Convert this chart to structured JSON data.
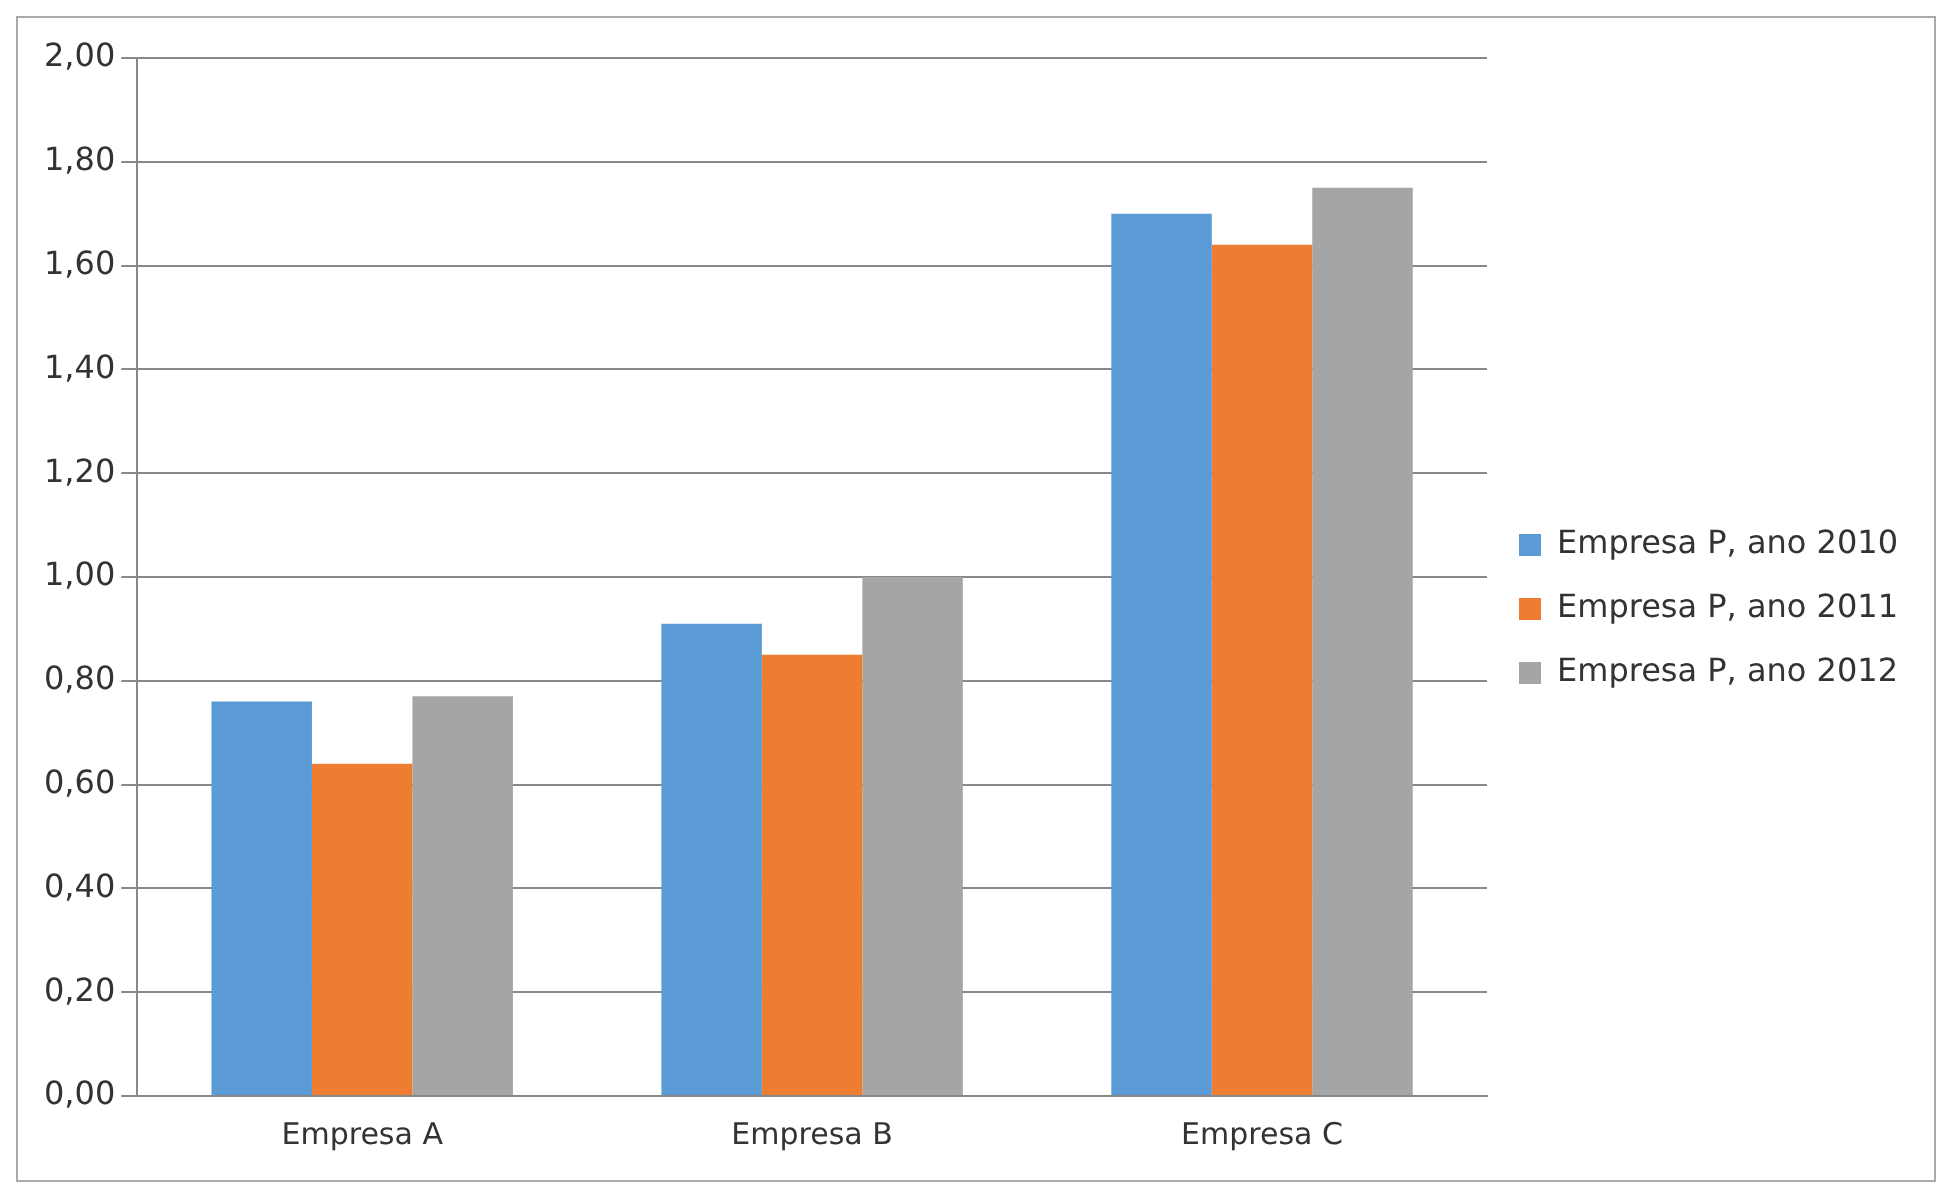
{
  "chart_data": {
    "type": "bar",
    "categories": [
      "Empresa A",
      "Empresa B",
      "Empresa C"
    ],
    "series": [
      {
        "name": "Empresa P, ano 2010",
        "color": "#5b9bd5",
        "values": [
          0.76,
          0.91,
          1.7
        ]
      },
      {
        "name": "Empresa P, ano 2011",
        "color": "#ed7d31",
        "values": [
          0.64,
          0.85,
          1.64
        ]
      },
      {
        "name": "Empresa P, ano 2012",
        "color": "#a5a5a5",
        "values": [
          0.77,
          1.0,
          1.75
        ]
      }
    ],
    "ylim": [
      0,
      2
    ],
    "yticks": [
      {
        "value": 0,
        "label": "0,00"
      },
      {
        "value": 0.2,
        "label": "0,20"
      },
      {
        "value": 0.4,
        "label": "0,40"
      },
      {
        "value": 0.6,
        "label": "0,60"
      },
      {
        "value": 0.8,
        "label": "0,80"
      },
      {
        "value": 1,
        "label": "1,00"
      },
      {
        "value": 1.2,
        "label": "1,20"
      },
      {
        "value": 1.4,
        "label": "1,40"
      },
      {
        "value": 1.6,
        "label": "1,60"
      },
      {
        "value": 1.8,
        "label": "1,80"
      },
      {
        "value": 2,
        "label": "2,00"
      }
    ],
    "grid": "y",
    "legend": "right"
  }
}
